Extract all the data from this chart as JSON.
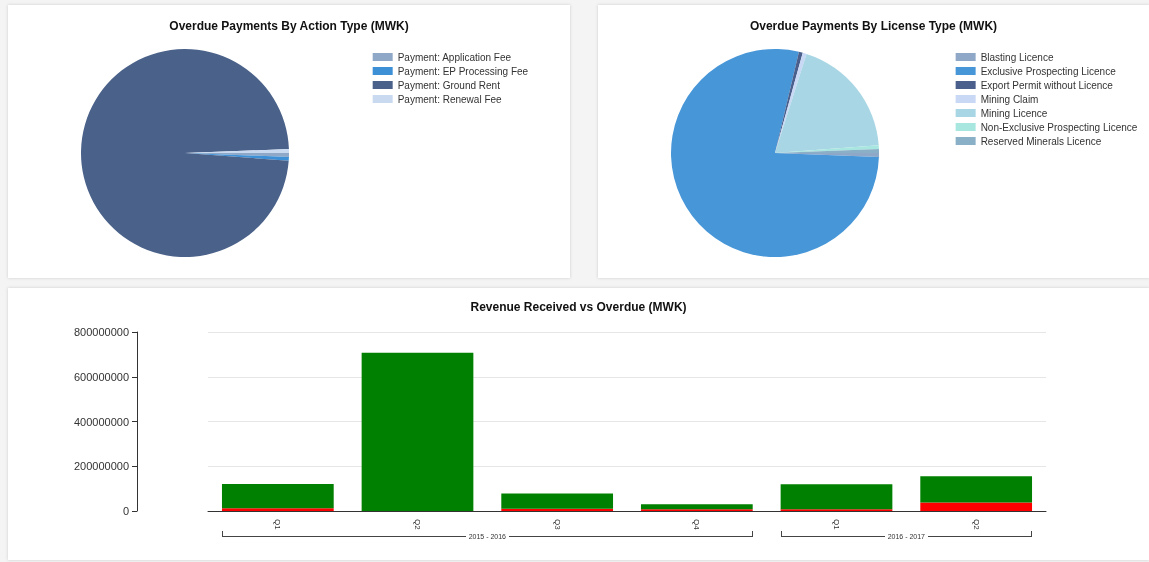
{
  "chart_data": [
    {
      "type": "pie",
      "title": "Overdue Payments By Action Type (MWK)",
      "categories": [
        "Payment: Application Fee",
        "Payment: EP Processing Fee",
        "Payment: Ground Rent",
        "Payment: Renewal Fee"
      ],
      "values": [
        0.6,
        0.6,
        98.2,
        0.6
      ],
      "colors": [
        "#8fa8c8",
        "#3d8fd6",
        "#4a6189",
        "#c9daf0"
      ],
      "legend": "right"
    },
    {
      "type": "pie",
      "title": "Overdue Payments By License Type (MWK)",
      "categories": [
        "Blasting Licence",
        "Exclusive Prospecting Licence",
        "Export Permit without Licence",
        "Mining Claim",
        "Mining Licence",
        "Non-Exclusive Prospecting Licence",
        "Reserved Minerals Licence"
      ],
      "values": [
        0.6,
        78.1,
        0.6,
        0.6,
        18.9,
        0.6,
        0.6
      ],
      "colors": [
        "#8fa8c8",
        "#4796d8",
        "#4a5f8c",
        "#c8d8f5",
        "#a8d6e4",
        "#a8e6e0",
        "#8ab0c8"
      ],
      "legend": "right"
    },
    {
      "type": "bar",
      "title": "Revenue Received vs Overdue (MWK)",
      "categories": [
        "Q1",
        "Q2",
        "Q3",
        "Q4",
        "Q1",
        "Q2"
      ],
      "stacked": true,
      "series": [
        {
          "color": "#ff0000",
          "values": [
            12000000,
            0,
            10000000,
            8000000,
            8000000,
            38000000
          ]
        },
        {
          "color": "#008000",
          "values": [
            109000000,
            707000000,
            68000000,
            22000000,
            111000000,
            117000000
          ]
        }
      ],
      "ylim": [
        0,
        800000000
      ],
      "yticks": [
        0,
        200000000,
        400000000,
        600000000,
        800000000
      ],
      "grid": "y",
      "legend": false,
      "annotations": [
        "2015 - 2016",
        "2016 - 2017"
      ]
    }
  ]
}
